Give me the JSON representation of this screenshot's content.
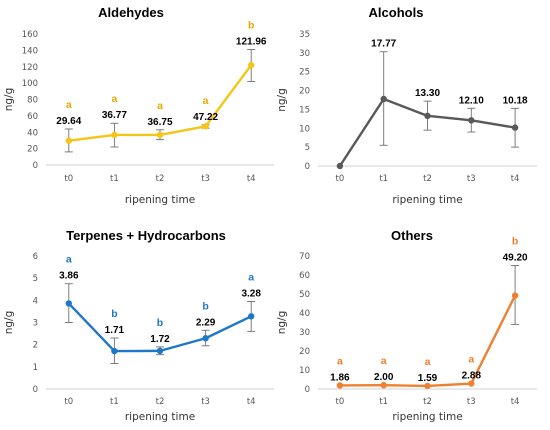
{
  "chart_data": [
    {
      "type": "line",
      "title": "Aldehydes",
      "xlabel": "ripening time",
      "ylabel": "ng/g",
      "categories": [
        "t0",
        "t1",
        "t2",
        "t3",
        "t4"
      ],
      "values": [
        29.64,
        36.77,
        36.75,
        47.22,
        121.96
      ],
      "value_labels": [
        "29.64",
        "36.77",
        "36.75",
        "47.22",
        "121.96"
      ],
      "error_low": [
        16,
        22,
        31,
        45,
        102
      ],
      "error_high": [
        44,
        51,
        43,
        49,
        141
      ],
      "significance": [
        "a",
        "a",
        "a",
        "a",
        "b"
      ],
      "ylim": [
        0,
        160
      ],
      "yticks": [
        0,
        20,
        40,
        60,
        80,
        100,
        120,
        140,
        160
      ],
      "color": "#f5c518",
      "sig_color": "#e8a800",
      "markers": "circle"
    },
    {
      "type": "line",
      "title": "Alcohols",
      "xlabel": "ripening time",
      "ylabel": "ng/g",
      "categories": [
        "t0",
        "t1",
        "t2",
        "t3",
        "t4"
      ],
      "values": [
        0,
        17.77,
        13.3,
        12.1,
        10.18
      ],
      "value_labels": [
        "",
        "17.77",
        "13.30",
        "12.10",
        "10.18"
      ],
      "error_low": [
        0,
        5.5,
        9.5,
        9,
        5
      ],
      "error_high": [
        0,
        30.3,
        17.2,
        15.3,
        15.3
      ],
      "significance": [
        "",
        "",
        "",
        "",
        ""
      ],
      "ylim": [
        0,
        35
      ],
      "yticks": [
        0,
        5,
        10,
        15,
        20,
        25,
        30,
        35
      ],
      "color": "#595959",
      "sig_color": "#595959",
      "markers": "circle"
    },
    {
      "type": "line",
      "title": "Terpenes + Hydrocarbons",
      "xlabel": "ripening time",
      "ylabel": "ng/g",
      "categories": [
        "t0",
        "t1",
        "t2",
        "t3",
        "t4"
      ],
      "values": [
        3.86,
        1.71,
        1.72,
        2.29,
        3.28
      ],
      "value_labels": [
        "3.86",
        "1.71",
        "1.72",
        "2.29",
        "3.28"
      ],
      "error_low": [
        3.0,
        1.15,
        1.55,
        1.95,
        2.6
      ],
      "error_high": [
        4.75,
        2.3,
        1.9,
        2.65,
        3.95
      ],
      "significance": [
        "a",
        "b",
        "b",
        "b",
        "a"
      ],
      "ylim": [
        0,
        6
      ],
      "yticks": [
        0,
        1,
        2,
        3,
        4,
        5,
        6
      ],
      "color": "#1f77c8",
      "sig_color": "#1f77c8",
      "markers": "circle"
    },
    {
      "type": "line",
      "title": "Others",
      "xlabel": "ripening time",
      "ylabel": "ng/g",
      "categories": [
        "t0",
        "t1",
        "t2",
        "t3",
        "t4"
      ],
      "values": [
        1.86,
        2.0,
        1.59,
        2.88,
        49.2
      ],
      "value_labels": [
        "1.86",
        "2.00",
        "1.59",
        "2.88",
        "49.20"
      ],
      "error_low": [
        1.86,
        2.0,
        1.59,
        2.88,
        34
      ],
      "error_high": [
        1.86,
        2.0,
        1.59,
        2.88,
        65
      ],
      "significance": [
        "a",
        "a",
        "a",
        "a",
        "b"
      ],
      "ylim": [
        0,
        70
      ],
      "yticks": [
        0,
        10,
        20,
        30,
        40,
        50,
        60,
        70
      ],
      "color": "#f07f2e",
      "sig_color": "#f07f2e",
      "markers": "circle"
    }
  ]
}
